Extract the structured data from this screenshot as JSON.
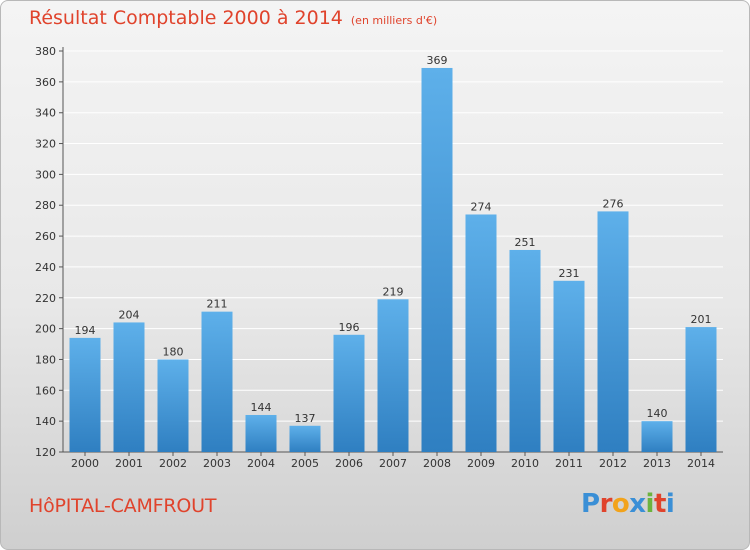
{
  "header": {
    "title": "Résultat Comptable 2000 à 2014",
    "unit_note": "(en milliers d'€)"
  },
  "footer": {
    "commune": "HôPITAL-CAMFROUT",
    "logo_letters": [
      "P",
      "r",
      "o",
      "x",
      "i",
      "t",
      "i"
    ]
  },
  "colors": {
    "title": "#e0432c",
    "bar_top": "#5eb0ea",
    "bar_bottom": "#2f7fc1",
    "grid": "#ffffff"
  },
  "chart_data": {
    "type": "bar",
    "title": "Résultat Comptable 2000 à 2014",
    "subtitle": "(en milliers d'€)",
    "xlabel": "",
    "ylabel": "",
    "categories": [
      "2000",
      "2001",
      "2002",
      "2003",
      "2004",
      "2005",
      "2006",
      "2007",
      "2008",
      "2009",
      "2010",
      "2011",
      "2012",
      "2013",
      "2014"
    ],
    "values": [
      194,
      204,
      180,
      211,
      144,
      137,
      196,
      219,
      369,
      274,
      251,
      231,
      276,
      140,
      201
    ],
    "ylim": [
      120,
      380
    ],
    "yticks": [
      120,
      140,
      160,
      180,
      200,
      220,
      240,
      260,
      280,
      300,
      320,
      340,
      360,
      380
    ],
    "grid": true,
    "data_labels": true,
    "legend": "none"
  }
}
